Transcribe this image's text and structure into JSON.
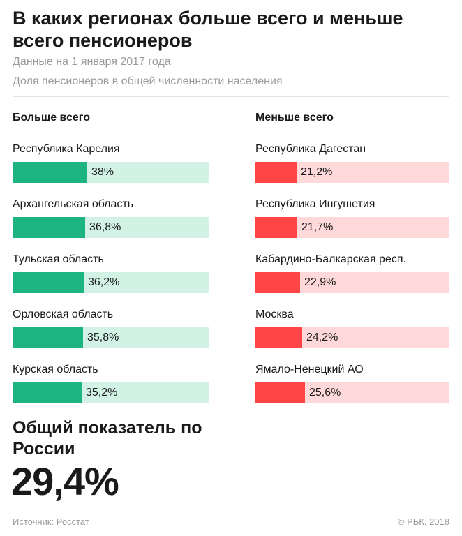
{
  "title": "В каких регионах больше всего и меньше всего пенсионеров",
  "subtitle_date": "Данные на 1 января 2017 года",
  "subtitle_measure": "Доля пенсионеров в общей численности населения",
  "colors": {
    "most_fill": "#1db482",
    "most_track": "#d2f2e6",
    "least_fill": "#ff4545",
    "least_track": "#ffd9d9"
  },
  "chart_data": [
    {
      "type": "bar",
      "title": "Больше всего",
      "categories": [
        "Республика Карелия",
        "Архангельская область",
        "Тульская область",
        "Орловская область",
        "Курская область"
      ],
      "values": [
        38,
        36.8,
        36.2,
        35.8,
        35.2
      ],
      "labels": [
        "38%",
        "36,8%",
        "36,2%",
        "35,8%",
        "35,2%"
      ],
      "unit": "%",
      "orientation": "horizontal",
      "xlim": [
        0,
        100
      ]
    },
    {
      "type": "bar",
      "title": "Меньше всего",
      "categories": [
        "Республика Дагестан",
        "Республика Ингушетия",
        "Кабардино-Балкарская респ.",
        "Москва",
        "Ямало-Ненецкий АО"
      ],
      "values": [
        21.2,
        21.7,
        22.9,
        24.2,
        25.6
      ],
      "labels": [
        "21,2%",
        "21,7%",
        "22,9%",
        "24,2%",
        "25,6%"
      ],
      "unit": "%",
      "orientation": "horizontal",
      "xlim": [
        0,
        100
      ]
    }
  ],
  "overall": {
    "label": "Общий показатель по России",
    "value": "29,4%"
  },
  "footer": {
    "source": "Источник: Росстат",
    "copyright": "© РБК, 2018"
  }
}
